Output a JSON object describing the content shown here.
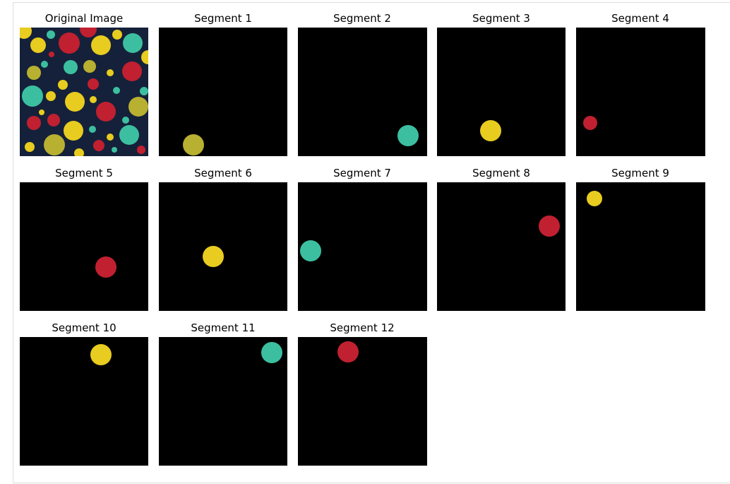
{
  "titles": [
    "Original Image",
    "Segment 1",
    "Segment 2",
    "Segment 3",
    "Segment 4",
    "Segment 5",
    "Segment 6",
    "Segment 7",
    "Segment 8",
    "Segment 9",
    "Segment 10",
    "Segment 11",
    "Segment 12"
  ]
}
